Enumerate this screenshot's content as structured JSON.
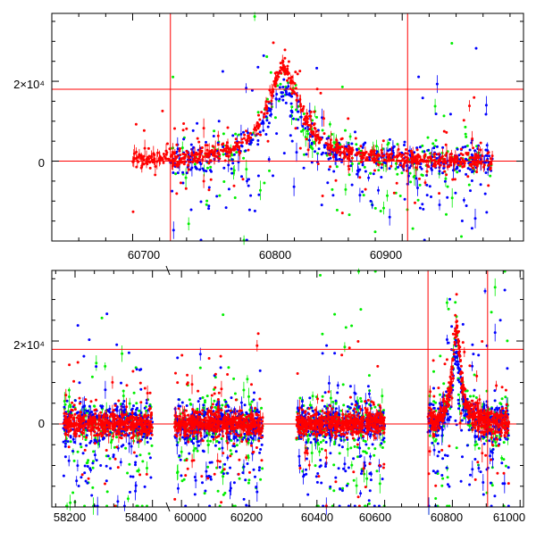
{
  "colors": {
    "red": "#ff0000",
    "green": "#00ee00",
    "blue": "#0000ff",
    "frame": "#000000",
    "refline": "#ff0000"
  },
  "chart_data": [
    {
      "type": "scatter",
      "title": "",
      "xlabel": "",
      "ylabel": "",
      "xlim": [
        60640,
        60990
      ],
      "ylim": [
        -20000,
        37000
      ],
      "xticks": [
        "60700",
        "60800",
        "60900"
      ],
      "yticks": [
        "0",
        "2×10⁴"
      ],
      "hlines": [
        0,
        18000
      ],
      "vlines": [
        60728,
        60904
      ],
      "series": [
        {
          "name": "red",
          "color": "#ff0000",
          "segments": [
            [
              60700,
              60967
            ]
          ],
          "peak": 60812,
          "peak_height": 23000,
          "width": 15,
          "scatter": 1800
        },
        {
          "name": "green",
          "color": "#00ee00",
          "segments": [
            [
              60728,
              60967
            ]
          ],
          "peak": 60812,
          "peak_height": 20000,
          "width": 15,
          "scatter": 4500
        },
        {
          "name": "blue",
          "color": "#0000ff",
          "segments": [
            [
              60728,
              60967
            ]
          ],
          "peak": 60812,
          "peak_height": 17000,
          "width": 15,
          "scatter": 3500
        }
      ]
    },
    {
      "type": "scatter",
      "title": "",
      "xlabel": "",
      "ylabel": "",
      "xlim": [
        58140,
        61010
      ],
      "xbreak": {
        "left": [
          58140,
          58440
        ],
        "right": [
          59960,
          61010
        ]
      },
      "ylim": [
        -20000,
        37000
      ],
      "xticks": [
        "58200",
        "58400",
        "60000",
        "60200",
        "60400",
        "60600",
        "60800",
        "61000"
      ],
      "yticks": [
        "0",
        "2×10⁴"
      ],
      "hlines": [
        0,
        18000
      ],
      "vlines": [
        60728,
        60904
      ],
      "series": [
        {
          "name": "red",
          "color": "#ff0000",
          "segments": [
            [
              58170,
              58400
            ],
            [
              59980,
              60240
            ],
            [
              60340,
              60600
            ],
            [
              60728,
              60967
            ]
          ],
          "peak": 60812,
          "peak_height": 23000,
          "width": 15,
          "scatter": 2500
        },
        {
          "name": "green",
          "color": "#00ee00",
          "segments": [
            [
              58170,
              58400
            ],
            [
              59980,
              60240
            ],
            [
              60340,
              60600
            ],
            [
              60728,
              60967
            ]
          ],
          "peak": 60812,
          "peak_height": 20000,
          "width": 15,
          "scatter": 6000
        },
        {
          "name": "blue",
          "color": "#0000ff",
          "segments": [
            [
              58170,
              58400
            ],
            [
              59980,
              60240
            ],
            [
              60340,
              60600
            ],
            [
              60728,
              60967
            ]
          ],
          "peak": 60812,
          "peak_height": 17000,
          "width": 15,
          "scatter": 4000
        }
      ]
    }
  ]
}
